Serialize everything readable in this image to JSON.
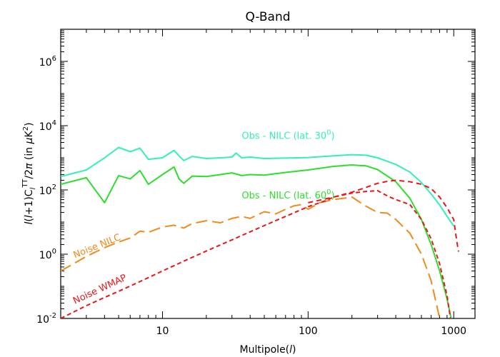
{
  "chart_data": {
    "type": "line",
    "title": "Q-Band",
    "xlabel": "Multipole(",
    "xlabel_symbol": "l",
    "xlabel_close": ")",
    "ylabel_parts": [
      "l",
      "(",
      "l",
      "+1)",
      "C",
      "l",
      "TT",
      "/2",
      "π",
      " (in ",
      "μ",
      "K",
      "2",
      ")"
    ],
    "xscale": "log",
    "yscale": "log",
    "xlim": [
      2,
      1400
    ],
    "ylim": [
      0.01,
      10000000
    ],
    "x_ticks": [
      {
        "value": 10,
        "label": "10"
      },
      {
        "value": 100,
        "label": "100"
      },
      {
        "value": 1000,
        "label": "1000"
      }
    ],
    "y_ticks": [
      {
        "value": 0.01,
        "base": "10",
        "exp": "-2"
      },
      {
        "value": 1,
        "base": "10",
        "exp": "0"
      },
      {
        "value": 100,
        "base": "10",
        "exp": "2"
      },
      {
        "value": 10000,
        "base": "10",
        "exp": "4"
      },
      {
        "value": 1000000,
        "base": "10",
        "exp": "6"
      }
    ],
    "series": [
      {
        "name": "Obs - NILC (lat. 30",
        "name_sup": "0",
        "name_close": ")",
        "color": "#33f0b4",
        "dash": "",
        "label_at": [
          35,
          3900
        ],
        "label_angle": 0,
        "points": [
          [
            2,
            260
          ],
          [
            3,
            420
          ],
          [
            4,
            1000
          ],
          [
            5,
            2100
          ],
          [
            6,
            1550
          ],
          [
            7,
            2000
          ],
          [
            8,
            900
          ],
          [
            10,
            1000
          ],
          [
            12,
            1700
          ],
          [
            13,
            1150
          ],
          [
            14,
            820
          ],
          [
            16,
            1100
          ],
          [
            20,
            950
          ],
          [
            25,
            1000
          ],
          [
            30,
            1050
          ],
          [
            32,
            1400
          ],
          [
            35,
            1000
          ],
          [
            40,
            1050
          ],
          [
            50,
            950
          ],
          [
            70,
            980
          ],
          [
            100,
            1020
          ],
          [
            150,
            1150
          ],
          [
            200,
            1250
          ],
          [
            250,
            1200
          ],
          [
            300,
            1000
          ],
          [
            400,
            620
          ],
          [
            500,
            360
          ],
          [
            600,
            170
          ],
          [
            700,
            75
          ],
          [
            800,
            34
          ],
          [
            900,
            15
          ],
          [
            1000,
            7.5
          ]
        ]
      },
      {
        "name": "Obs - NILC (lat. 60",
        "name_sup": "0",
        "name_close": ")",
        "color": "#2edd2e",
        "dash": "",
        "label_at": [
          35,
          54
        ],
        "label_angle": 0,
        "points": [
          [
            2,
            150
          ],
          [
            3,
            240
          ],
          [
            4,
            40
          ],
          [
            5,
            280
          ],
          [
            6,
            220
          ],
          [
            7,
            400
          ],
          [
            8,
            150
          ],
          [
            10,
            300
          ],
          [
            12,
            520
          ],
          [
            13,
            220
          ],
          [
            14,
            160
          ],
          [
            16,
            270
          ],
          [
            20,
            260
          ],
          [
            25,
            300
          ],
          [
            30,
            340
          ],
          [
            35,
            280
          ],
          [
            40,
            300
          ],
          [
            50,
            290
          ],
          [
            70,
            350
          ],
          [
            100,
            420
          ],
          [
            150,
            540
          ],
          [
            200,
            600
          ],
          [
            250,
            560
          ],
          [
            300,
            430
          ],
          [
            400,
            180
          ],
          [
            500,
            55
          ],
          [
            600,
            12
          ],
          [
            700,
            2
          ],
          [
            800,
            0.3
          ],
          [
            900,
            0.04
          ],
          [
            960,
            0.01
          ]
        ]
      },
      {
        "name": "Noise NILC",
        "color": "#f08a1c",
        "dash": "16,7",
        "label_at": [
          2.5,
          0.75
        ],
        "label_angle": -22,
        "points": [
          [
            2,
            0.3
          ],
          [
            3,
            0.85
          ],
          [
            4,
            1.6
          ],
          [
            5,
            2.4
          ],
          [
            6,
            3.2
          ],
          [
            7,
            5.2
          ],
          [
            8,
            4.8
          ],
          [
            10,
            7
          ],
          [
            12,
            8
          ],
          [
            14,
            6.5
          ],
          [
            16,
            9
          ],
          [
            20,
            11
          ],
          [
            25,
            9.5
          ],
          [
            30,
            13
          ],
          [
            35,
            15
          ],
          [
            40,
            13
          ],
          [
            50,
            21
          ],
          [
            60,
            18
          ],
          [
            70,
            25
          ],
          [
            80,
            32
          ],
          [
            90,
            35
          ],
          [
            100,
            25
          ],
          [
            120,
            40
          ],
          [
            150,
            50
          ],
          [
            200,
            60
          ],
          [
            250,
            31
          ],
          [
            300,
            20
          ],
          [
            350,
            19
          ],
          [
            400,
            12
          ],
          [
            500,
            4.5
          ],
          [
            600,
            1
          ],
          [
            700,
            0.15
          ],
          [
            800,
            0.01
          ]
        ]
      },
      {
        "name": "Noise WMAP",
        "color": "#e81818",
        "dash": "6,4",
        "label_at": [
          2.5,
          0.028
        ],
        "label_angle": -25,
        "points": [
          [
            2,
            0.01
          ],
          [
            3,
            0.025
          ],
          [
            4,
            0.045
          ],
          [
            5,
            0.07
          ],
          [
            7,
            0.14
          ],
          [
            10,
            0.3
          ],
          [
            15,
            0.7
          ],
          [
            20,
            1.25
          ],
          [
            30,
            2.8
          ],
          [
            50,
            7.8
          ],
          [
            70,
            15
          ],
          [
            100,
            30
          ],
          [
            130,
            45
          ],
          [
            150,
            60
          ],
          [
            200,
            80
          ],
          [
            250,
            90
          ],
          [
            300,
            95
          ],
          [
            350,
            65
          ],
          [
            400,
            50
          ],
          [
            500,
            35
          ],
          [
            600,
            12
          ],
          [
            700,
            3
          ],
          [
            800,
            0.5
          ],
          [
            900,
            0.05
          ],
          [
            950,
            0.01
          ]
        ]
      },
      {
        "name": "",
        "color": "#e81818",
        "dash": "7,5",
        "label_at": null,
        "label_angle": 0,
        "points": [
          [
            100,
            40
          ],
          [
            150,
            60
          ],
          [
            200,
            85
          ],
          [
            250,
            120
          ],
          [
            300,
            160
          ],
          [
            350,
            185
          ],
          [
            400,
            200
          ],
          [
            500,
            180
          ],
          [
            600,
            150
          ],
          [
            700,
            110
          ],
          [
            800,
            60
          ],
          [
            900,
            28
          ],
          [
            1000,
            12
          ],
          [
            1050,
            2.5
          ],
          [
            1080,
            1.2
          ]
        ]
      }
    ]
  }
}
